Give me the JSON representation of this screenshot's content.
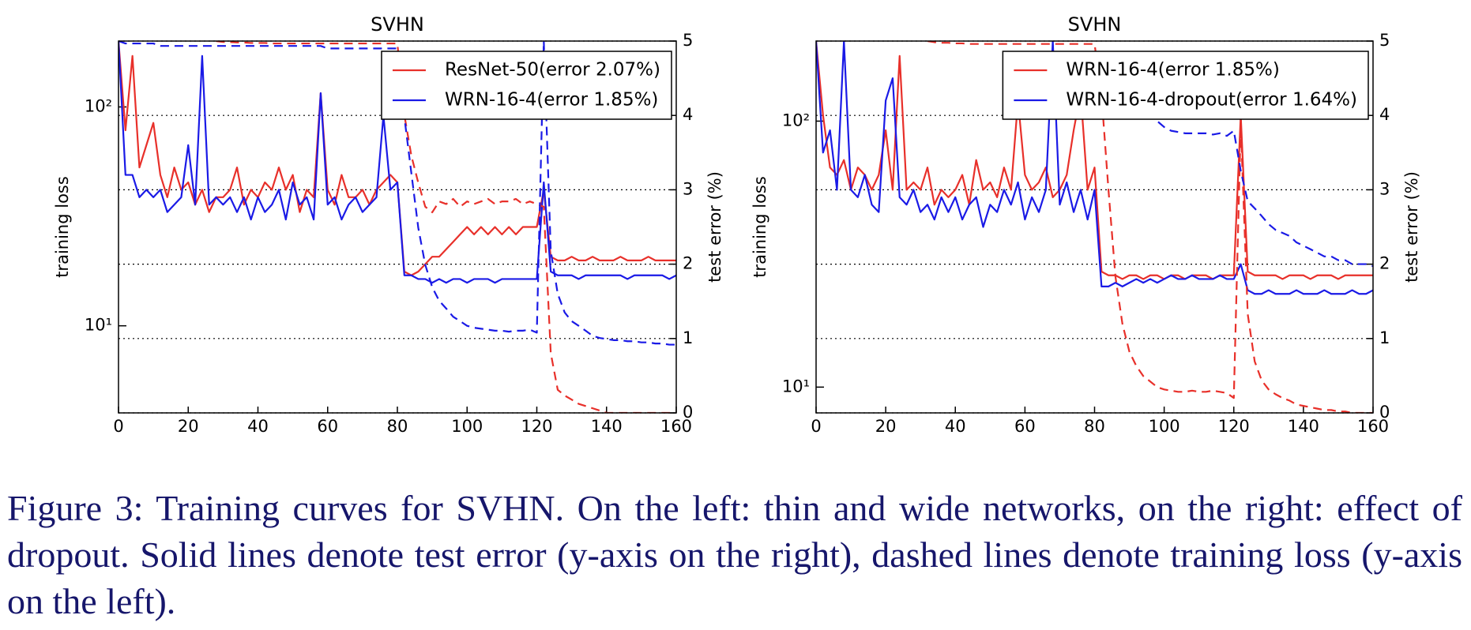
{
  "chart_data": [
    {
      "type": "line",
      "title": "SVHN",
      "ylabel": "training loss",
      "y2label": "test error (%)",
      "yscale": "log",
      "grid": true,
      "legend": "upper right",
      "xlim": [
        0,
        160
      ],
      "xticks": [
        0,
        20,
        40,
        60,
        80,
        100,
        120,
        140,
        160
      ],
      "ylim": [
        4,
        200
      ],
      "yticks": [
        {
          "value": 10,
          "label": "10¹"
        },
        {
          "value": 100,
          "label": "10²"
        }
      ],
      "y2lim": [
        0,
        5
      ],
      "y2ticks": [
        0,
        1,
        2,
        3,
        4,
        5
      ],
      "x": [
        0,
        2,
        4,
        6,
        8,
        10,
        12,
        14,
        16,
        18,
        20,
        22,
        24,
        26,
        28,
        30,
        32,
        34,
        36,
        38,
        40,
        42,
        44,
        46,
        48,
        50,
        52,
        54,
        56,
        58,
        60,
        62,
        64,
        66,
        68,
        70,
        72,
        74,
        76,
        78,
        80,
        82,
        84,
        86,
        88,
        90,
        92,
        94,
        96,
        98,
        100,
        102,
        104,
        106,
        108,
        110,
        112,
        114,
        116,
        118,
        120,
        122,
        124,
        126,
        128,
        130,
        132,
        134,
        136,
        138,
        140,
        142,
        144,
        146,
        148,
        150,
        152,
        154,
        156,
        158,
        160
      ],
      "series": [
        {
          "name": "ResNet-50(error 2.07%)",
          "color": "#e8302a",
          "axis": "y2",
          "linestyle": "solid",
          "values": [
            5.0,
            3.8,
            4.8,
            3.3,
            3.6,
            3.9,
            3.2,
            2.9,
            3.3,
            3.0,
            3.1,
            2.8,
            3.0,
            2.7,
            2.9,
            2.9,
            3.0,
            3.3,
            2.8,
            3.0,
            2.9,
            3.1,
            3.0,
            3.3,
            3.0,
            3.2,
            2.7,
            3.0,
            2.9,
            4.3,
            3.0,
            2.8,
            3.2,
            2.9,
            2.9,
            3.0,
            2.8,
            3.0,
            3.1,
            3.2,
            3.1,
            1.9,
            1.85,
            1.9,
            2.0,
            2.1,
            2.1,
            2.2,
            2.3,
            2.4,
            2.5,
            2.4,
            2.5,
            2.4,
            2.5,
            2.4,
            2.5,
            2.4,
            2.5,
            2.5,
            2.5,
            3.0,
            2.1,
            2.05,
            2.05,
            2.1,
            2.05,
            2.05,
            2.1,
            2.05,
            2.05,
            2.05,
            2.1,
            2.05,
            2.05,
            2.05,
            2.1,
            2.05,
            2.05,
            2.05,
            2.05
          ]
        },
        {
          "name": "WRN-16-4(error 1.85%)",
          "color": "#1a1ae6",
          "axis": "y2",
          "linestyle": "solid",
          "values": [
            5.0,
            3.2,
            3.2,
            2.9,
            3.0,
            2.9,
            3.0,
            2.7,
            2.8,
            2.9,
            3.6,
            2.8,
            4.8,
            2.8,
            2.9,
            2.8,
            2.9,
            2.7,
            2.9,
            2.6,
            2.9,
            2.7,
            2.8,
            3.0,
            2.6,
            3.1,
            2.8,
            2.9,
            2.6,
            4.3,
            2.8,
            2.9,
            2.6,
            2.8,
            2.9,
            2.7,
            2.8,
            2.9,
            4.0,
            3.0,
            3.1,
            1.85,
            1.85,
            1.8,
            1.8,
            1.75,
            1.8,
            1.75,
            1.8,
            1.8,
            1.75,
            1.8,
            1.8,
            1.8,
            1.75,
            1.8,
            1.8,
            1.8,
            1.8,
            1.8,
            1.8,
            3.1,
            1.9,
            1.85,
            1.85,
            1.85,
            1.8,
            1.85,
            1.85,
            1.85,
            1.85,
            1.85,
            1.85,
            1.8,
            1.85,
            1.85,
            1.85,
            1.85,
            1.85,
            1.8,
            1.85
          ]
        },
        {
          "color": "#e8302a",
          "linestyle": "dashed",
          "values": [
            null,
            null,
            null,
            null,
            null,
            null,
            null,
            null,
            null,
            null,
            null,
            null,
            null,
            null,
            200,
            198,
            198,
            197,
            197,
            196,
            196,
            196,
            195,
            195,
            195,
            195,
            195,
            195,
            195,
            195,
            195,
            195,
            195,
            195,
            195,
            195,
            195,
            195,
            195,
            195,
            195,
            92,
            60,
            45,
            35,
            33,
            37,
            36,
            38,
            35,
            37,
            36,
            37,
            38,
            36,
            37,
            37,
            38,
            36,
            37,
            36,
            35,
            7.5,
            5.1,
            4.8,
            4.6,
            4.4,
            4.3,
            4.2,
            4.1,
            4.0,
            4.0,
            4.0,
            4.0,
            4.0,
            4.0,
            4.0,
            4.0,
            4.0,
            4.0,
            4.0
          ]
        },
        {
          "color": "#1a1ae6",
          "linestyle": "dashed",
          "values": [
            200,
            195,
            195,
            195,
            195,
            195,
            190,
            190,
            190,
            190,
            190,
            190,
            190,
            190,
            190,
            190,
            190,
            190,
            190,
            190,
            190,
            190,
            190,
            190,
            190,
            190,
            190,
            190,
            190,
            190,
            185,
            185,
            185,
            185,
            185,
            185,
            185,
            185,
            185,
            185,
            185,
            90,
            50,
            28,
            19,
            15,
            13,
            12,
            11,
            10.5,
            10,
            9.8,
            9.7,
            9.6,
            9.5,
            9.5,
            9.4,
            9.5,
            9.5,
            9.6,
            9.3,
            200,
            22,
            14,
            11.5,
            10.5,
            10,
            9.5,
            9,
            8.8,
            8.7,
            8.6,
            8.6,
            8.5,
            8.5,
            8.4,
            8.4,
            8.3,
            8.3,
            8.2,
            8.2
          ]
        }
      ]
    },
    {
      "type": "line",
      "title": "SVHN",
      "ylabel": "training loss",
      "y2label": "test error (%)",
      "yscale": "log",
      "grid": true,
      "legend": "upper right",
      "xlim": [
        0,
        160
      ],
      "xticks": [
        0,
        20,
        40,
        60,
        80,
        100,
        120,
        140,
        160
      ],
      "ylim": [
        8,
        200
      ],
      "yticks": [
        {
          "value": 10,
          "label": "10¹"
        },
        {
          "value": 100,
          "label": "10²"
        }
      ],
      "y2lim": [
        0,
        5
      ],
      "y2ticks": [
        0,
        1,
        2,
        3,
        4,
        5
      ],
      "x": [
        0,
        2,
        4,
        6,
        8,
        10,
        12,
        14,
        16,
        18,
        20,
        22,
        24,
        26,
        28,
        30,
        32,
        34,
        36,
        38,
        40,
        42,
        44,
        46,
        48,
        50,
        52,
        54,
        56,
        58,
        60,
        62,
        64,
        66,
        68,
        70,
        72,
        74,
        76,
        78,
        80,
        82,
        84,
        86,
        88,
        90,
        92,
        94,
        96,
        98,
        100,
        102,
        104,
        106,
        108,
        110,
        112,
        114,
        116,
        118,
        120,
        122,
        124,
        126,
        128,
        130,
        132,
        134,
        136,
        138,
        140,
        142,
        144,
        146,
        148,
        150,
        152,
        154,
        156,
        158,
        160
      ],
      "series": [
        {
          "name": "WRN-16-4(error 1.85%)",
          "color": "#e8302a",
          "axis": "y2",
          "linestyle": "solid",
          "values": [
            5.0,
            4.0,
            3.3,
            3.2,
            3.4,
            3.0,
            3.3,
            3.2,
            3.0,
            3.2,
            3.8,
            3.0,
            4.8,
            3.0,
            3.1,
            3.0,
            3.3,
            2.8,
            3.0,
            2.9,
            3.0,
            3.2,
            2.8,
            3.4,
            3.0,
            3.1,
            2.9,
            3.3,
            3.0,
            4.2,
            3.2,
            3.0,
            3.1,
            3.3,
            2.9,
            3.0,
            3.2,
            3.8,
            4.3,
            3.0,
            3.3,
            1.9,
            1.85,
            1.85,
            1.8,
            1.85,
            1.85,
            1.8,
            1.85,
            1.85,
            1.8,
            1.85,
            1.85,
            1.8,
            1.85,
            1.85,
            1.85,
            1.8,
            1.85,
            1.85,
            1.85,
            4.0,
            1.9,
            1.85,
            1.85,
            1.85,
            1.85,
            1.8,
            1.85,
            1.85,
            1.85,
            1.8,
            1.85,
            1.85,
            1.85,
            1.8,
            1.85,
            1.85,
            1.85,
            1.85,
            1.85
          ]
        },
        {
          "name": "WRN-16-4-dropout(error 1.64%)",
          "color": "#1a1ae6",
          "axis": "y2",
          "linestyle": "solid",
          "values": [
            5.0,
            3.5,
            3.8,
            3.0,
            5.0,
            3.0,
            2.9,
            3.2,
            2.8,
            2.7,
            4.2,
            4.5,
            2.9,
            2.8,
            3.0,
            2.7,
            2.8,
            2.6,
            2.9,
            2.7,
            2.9,
            2.6,
            2.8,
            2.9,
            2.5,
            2.8,
            2.7,
            3.0,
            2.8,
            3.1,
            2.6,
            2.9,
            2.7,
            3.0,
            5.0,
            2.8,
            3.1,
            2.7,
            3.0,
            2.6,
            3.0,
            1.7,
            1.7,
            1.75,
            1.7,
            1.75,
            1.8,
            1.75,
            1.8,
            1.75,
            1.8,
            1.85,
            1.8,
            1.8,
            1.85,
            1.8,
            1.8,
            1.8,
            1.85,
            1.8,
            1.8,
            2.0,
            1.65,
            1.6,
            1.6,
            1.65,
            1.6,
            1.6,
            1.6,
            1.65,
            1.6,
            1.6,
            1.6,
            1.65,
            1.6,
            1.6,
            1.6,
            1.65,
            1.6,
            1.6,
            1.65
          ]
        },
        {
          "color": "#e8302a",
          "linestyle": "dashed",
          "values": [
            null,
            null,
            null,
            null,
            null,
            null,
            null,
            null,
            null,
            null,
            null,
            null,
            null,
            null,
            null,
            null,
            200,
            198,
            197,
            197,
            196,
            196,
            195,
            195,
            195,
            195,
            195,
            195,
            195,
            195,
            195,
            195,
            195,
            195,
            195,
            195,
            195,
            195,
            195,
            195,
            195,
            125,
            55,
            26,
            17.3,
            13.6,
            12,
            11,
            10.5,
            10,
            9.8,
            9.7,
            9.6,
            9.6,
            9.7,
            9.6,
            9.6,
            9.7,
            9.6,
            9.5,
            9.1,
            97,
            18.8,
            12.5,
            10.6,
            9.8,
            9.4,
            9.1,
            8.9,
            8.6,
            8.5,
            8.4,
            8.3,
            8.2,
            8.2,
            8.1,
            8.1,
            8.0,
            8.0,
            8.0,
            8.0
          ]
        },
        {
          "color": "#1a1ae6",
          "linestyle": "dashed",
          "values": [
            null,
            null,
            null,
            null,
            null,
            null,
            null,
            null,
            null,
            null,
            null,
            null,
            null,
            null,
            null,
            null,
            null,
            null,
            null,
            null,
            null,
            null,
            null,
            null,
            null,
            null,
            null,
            null,
            null,
            null,
            null,
            null,
            null,
            null,
            null,
            null,
            null,
            null,
            null,
            null,
            null,
            null,
            null,
            null,
            null,
            null,
            null,
            null,
            110,
            100,
            95,
            92,
            91,
            90,
            90,
            90,
            90,
            89,
            90,
            88,
            92,
            65,
            50,
            47,
            44,
            41,
            39,
            38,
            37,
            35,
            34,
            33,
            32,
            31,
            31,
            30,
            30,
            29,
            29,
            29,
            28.5
          ]
        }
      ]
    }
  ],
  "caption": "Figure 3: Training curves for SVHN. On the left: thin and wide networks, on the right: effect of dropout. Solid lines denote test error (y-axis on the right), dashed lines denote training loss (y-axis on the left)."
}
